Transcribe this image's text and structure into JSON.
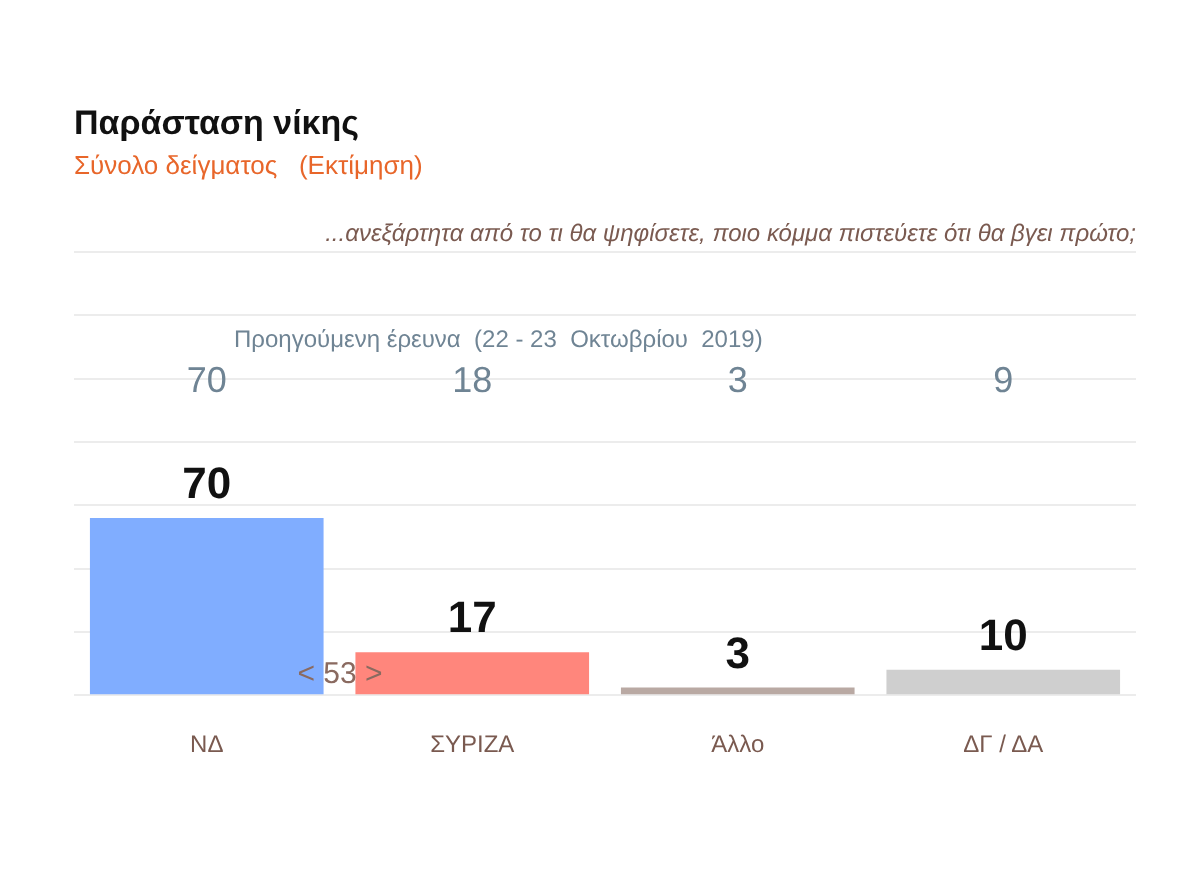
{
  "chart_data": {
    "type": "bar",
    "title": "Παράσταση νίκης",
    "subtitle": "Σύνολο δείγματος   (Εκτίμηση)",
    "categories": [
      "ΝΔ",
      "ΣΥΡΙΖΑ",
      "Άλλο",
      "ΔΓ / ΔΑ"
    ],
    "values": [
      70,
      17,
      3,
      10
    ],
    "colors": [
      "#80adff",
      "#ff867c",
      "#b9a9a3",
      "#cfcfcf"
    ],
    "ylim": [
      0,
      175
    ],
    "yticks": [
      {
        "value": 0,
        "label": null
      },
      {
        "value": 25,
        "label": null
      },
      {
        "value": 50,
        "label": null
      },
      {
        "value": 75,
        "label": null
      },
      {
        "value": 100,
        "label": null
      },
      {
        "value": 125,
        "label": null
      },
      {
        "value": 150,
        "label": null
      },
      {
        "value": 175,
        "label": null
      }
    ],
    "grid": "y",
    "tick_labels": "x",
    "data_labels": true,
    "annotations": [
      "...ανεξάρτητα από το τι θα ψηφίσετε, ποιο κόμμα πιστεύετε ότι θα βγει πρώτο;",
      "Προηγούμενη έρευνα  (22 - 23  Οκτωβρίου  2019)",
      "< 53 >",
      "70",
      "18",
      "3",
      "9"
    ]
  }
}
